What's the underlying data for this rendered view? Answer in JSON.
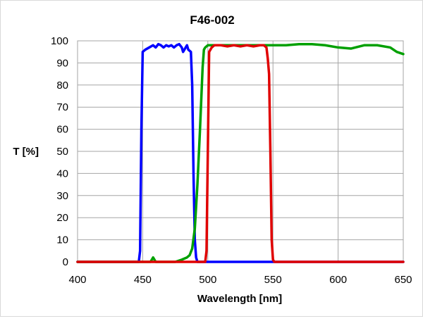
{
  "chart_data": {
    "type": "line",
    "title": "F46-002",
    "xlabel": "Wavelength [nm]",
    "ylabel": "T [%]",
    "xlim": [
      400,
      650
    ],
    "ylim": [
      0,
      100
    ],
    "xticks": [
      400,
      450,
      500,
      550,
      600,
      650
    ],
    "yticks": [
      0,
      10,
      20,
      30,
      40,
      50,
      60,
      70,
      80,
      90,
      100
    ],
    "grid": true,
    "legend": "none",
    "series": [
      {
        "color": "#0000ff",
        "points": [
          [
            400,
            0
          ],
          [
            447,
            0
          ],
          [
            448,
            5
          ],
          [
            449,
            60
          ],
          [
            450,
            95
          ],
          [
            452,
            96
          ],
          [
            455,
            97
          ],
          [
            458,
            98
          ],
          [
            460,
            97
          ],
          [
            462,
            98.5
          ],
          [
            464,
            98
          ],
          [
            466,
            97
          ],
          [
            468,
            98
          ],
          [
            470,
            97.5
          ],
          [
            472,
            98
          ],
          [
            474,
            97
          ],
          [
            476,
            98
          ],
          [
            478,
            98.5
          ],
          [
            480,
            97
          ],
          [
            481,
            95
          ],
          [
            482,
            96
          ],
          [
            484,
            98
          ],
          [
            485,
            96
          ],
          [
            487,
            95
          ],
          [
            488,
            80
          ],
          [
            489,
            40
          ],
          [
            490,
            10
          ],
          [
            491,
            2
          ],
          [
            492,
            0
          ],
          [
            650,
            0
          ]
        ]
      },
      {
        "color": "#00a000",
        "points": [
          [
            400,
            0
          ],
          [
            456,
            0
          ],
          [
            458,
            2
          ],
          [
            460,
            0
          ],
          [
            475,
            0
          ],
          [
            480,
            1
          ],
          [
            484,
            2
          ],
          [
            486,
            3
          ],
          [
            488,
            6
          ],
          [
            490,
            15
          ],
          [
            492,
            35
          ],
          [
            494,
            60
          ],
          [
            496,
            88
          ],
          [
            497,
            96
          ],
          [
            498,
            97
          ],
          [
            500,
            98
          ],
          [
            510,
            98
          ],
          [
            520,
            98
          ],
          [
            530,
            98
          ],
          [
            540,
            98
          ],
          [
            550,
            98
          ],
          [
            560,
            98
          ],
          [
            570,
            98.5
          ],
          [
            580,
            98.5
          ],
          [
            590,
            98
          ],
          [
            600,
            97
          ],
          [
            610,
            96.5
          ],
          [
            620,
            98
          ],
          [
            630,
            98
          ],
          [
            640,
            97
          ],
          [
            645,
            95
          ],
          [
            650,
            94
          ]
        ]
      },
      {
        "color": "#e00000",
        "points": [
          [
            400,
            0
          ],
          [
            498,
            0
          ],
          [
            499,
            5
          ],
          [
            500,
            50
          ],
          [
            501,
            95
          ],
          [
            503,
            97
          ],
          [
            505,
            98
          ],
          [
            510,
            98
          ],
          [
            515,
            97.5
          ],
          [
            520,
            98
          ],
          [
            525,
            97.5
          ],
          [
            530,
            98
          ],
          [
            535,
            97.5
          ],
          [
            540,
            98
          ],
          [
            543,
            98
          ],
          [
            545,
            97
          ],
          [
            546,
            92
          ],
          [
            547,
            85
          ],
          [
            548,
            50
          ],
          [
            549,
            10
          ],
          [
            550,
            1
          ],
          [
            551,
            0
          ],
          [
            650,
            0
          ]
        ]
      }
    ]
  }
}
